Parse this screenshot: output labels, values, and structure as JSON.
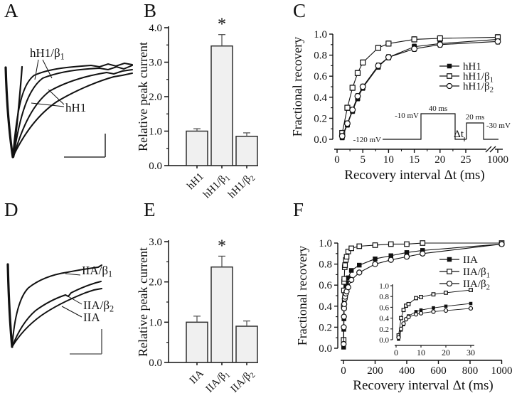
{
  "figure": {
    "background": "#ffffff",
    "panel_labels": [
      "A",
      "B",
      "C",
      "D",
      "E",
      "F"
    ]
  },
  "colors": {
    "ink": "#111111",
    "bar_fill": "#f0f0f0",
    "bar_stroke": "#2e2e2e",
    "error_bar": "#4a4a4a",
    "scale_bar_a": "#333333",
    "scale_bar_d": "#666666"
  },
  "chart_data": [
    {
      "panel": "A",
      "type": "line",
      "subtype": "current-traces",
      "trace_labels": [
        "hH1/β1",
        "hH1"
      ],
      "has_scale_bar": true
    },
    {
      "panel": "B",
      "type": "bar",
      "ylabel": "Relative peak current",
      "categories": [
        "hH1",
        "hH1/β1",
        "hH1/β2"
      ],
      "values": [
        1.0,
        3.47,
        0.85
      ],
      "errors": [
        0.07,
        0.33,
        0.1
      ],
      "significance": [
        "",
        "*",
        ""
      ],
      "ylim": [
        0,
        4
      ],
      "ytick_values": [
        0,
        1,
        2,
        3,
        4
      ],
      "ytick_labels": [
        "0.0",
        "1.0",
        "2.0",
        "3.0",
        "4.0"
      ]
    },
    {
      "panel": "C",
      "type": "scatter",
      "ylabel": "Fractional recovery",
      "xlabel": "Recovery interval Δt (ms)",
      "x": [
        1,
        2,
        3,
        4,
        5,
        8,
        10,
        15,
        20,
        1000
      ],
      "series": [
        {
          "name": "hH1",
          "marker": "filled-square",
          "values": [
            0.02,
            0.14,
            0.27,
            0.39,
            0.49,
            0.69,
            0.78,
            0.88,
            0.91,
            0.95
          ]
        },
        {
          "name": "hH1/β1",
          "marker": "open-square",
          "values": [
            0.06,
            0.3,
            0.49,
            0.63,
            0.73,
            0.87,
            0.91,
            0.95,
            0.96,
            0.97
          ]
        },
        {
          "name": "hH1/β2",
          "marker": "open-circle",
          "values": [
            0.03,
            0.15,
            0.28,
            0.41,
            0.5,
            0.7,
            0.78,
            0.86,
            0.9,
            0.93
          ]
        }
      ],
      "yerr": 0.025,
      "ylim": [
        0,
        1
      ],
      "ytick_values": [
        0,
        0.2,
        0.4,
        0.6,
        0.8,
        1.0
      ],
      "ytick_labels": [
        "0.0",
        "0.2",
        "0.4",
        "0.6",
        "0.8",
        "1.0"
      ],
      "xtick_values": [
        0,
        5,
        10,
        15,
        20,
        25
      ],
      "xtick_labels": [
        "0",
        "5",
        "10",
        "15",
        "20",
        "25"
      ],
      "x_break_tick_label": "1000",
      "legend_position": "right",
      "inset_protocol": {
        "hold_label": "-120 mV",
        "pulse_label": "-10 mV",
        "pulse_duration": "40 ms",
        "test_duration": "20 ms",
        "test_label": "-30 mV",
        "interval_label": "Δt"
      }
    },
    {
      "panel": "D",
      "type": "line",
      "subtype": "current-traces",
      "trace_labels": [
        "IIA/β1",
        "IIA/β2",
        "IIA"
      ],
      "has_scale_bar": true
    },
    {
      "panel": "E",
      "type": "bar",
      "ylabel": "Relative peak current",
      "categories": [
        "IIA",
        "IIA/β1",
        "IIA/β2"
      ],
      "values": [
        1.0,
        2.37,
        0.9
      ],
      "errors": [
        0.15,
        0.27,
        0.13
      ],
      "significance": [
        "",
        "*",
        ""
      ],
      "ylim": [
        0,
        3
      ],
      "ytick_values": [
        0,
        1,
        2,
        3
      ],
      "ytick_labels": [
        "0.0",
        "1.0",
        "2.0",
        "3.0"
      ]
    },
    {
      "panel": "F",
      "type": "scatter",
      "ylabel": "Fractional recovery",
      "xlabel": "Recovery interval Δt (ms)",
      "x": [
        1,
        2,
        3,
        4,
        5,
        8,
        10,
        15,
        20,
        30,
        50,
        100,
        200,
        300,
        400,
        500,
        1000
      ],
      "series": [
        {
          "name": "IIA",
          "marker": "filled-square",
          "values": [
            0.01,
            0.18,
            0.28,
            0.38,
            0.44,
            0.52,
            0.55,
            0.59,
            0.62,
            0.67,
            0.74,
            0.79,
            0.85,
            0.88,
            0.91,
            0.93,
            0.99
          ]
        },
        {
          "name": "IIA/β1",
          "marker": "open-square",
          "values": [
            0.08,
            0.4,
            0.55,
            0.63,
            0.66,
            0.77,
            0.79,
            0.84,
            0.87,
            0.92,
            0.95,
            0.97,
            0.98,
            0.99,
            0.99,
            1.0,
            1.0
          ]
        },
        {
          "name": "IIA/β2",
          "marker": "open-circle",
          "values": [
            0.04,
            0.2,
            0.3,
            0.38,
            0.42,
            0.47,
            0.49,
            0.52,
            0.54,
            0.58,
            0.65,
            0.72,
            0.8,
            0.84,
            0.87,
            0.9,
            0.99
          ]
        }
      ],
      "yerr": 0.015,
      "ylim": [
        0,
        1
      ],
      "ytick_values": [
        0,
        0.2,
        0.4,
        0.6,
        0.8,
        1.0
      ],
      "ytick_labels": [
        "0.0",
        "0.2",
        "0.4",
        "0.6",
        "0.8",
        "1.0"
      ],
      "xtick_values": [
        0,
        200,
        400,
        600,
        800,
        1000
      ],
      "xtick_labels": [
        "0",
        "200",
        "400",
        "600",
        "800",
        "1000"
      ],
      "legend_position": "right",
      "inset": {
        "x": [
          1,
          2,
          3,
          4,
          5,
          8,
          10,
          15,
          20,
          30
        ],
        "xtick_values": [
          0,
          10,
          20,
          30
        ],
        "xtick_labels": [
          "0",
          "10",
          "20",
          "30"
        ],
        "ytick_values": [
          0,
          0.2,
          0.4,
          0.6,
          0.8,
          1.0
        ],
        "ytick_labels": [
          "0.0",
          "0.2",
          "0.4",
          "0.6",
          "0.8",
          "1.0"
        ],
        "series": [
          {
            "name": "IIA",
            "marker": "filled-square",
            "values": [
              0.01,
              0.18,
              0.28,
              0.38,
              0.44,
              0.52,
              0.55,
              0.59,
              0.62,
              0.67
            ]
          },
          {
            "name": "IIA/β1",
            "marker": "open-square",
            "values": [
              0.08,
              0.4,
              0.55,
              0.63,
              0.66,
              0.77,
              0.79,
              0.84,
              0.87,
              0.92
            ]
          },
          {
            "name": "IIA/β2",
            "marker": "open-circle",
            "values": [
              0.04,
              0.2,
              0.3,
              0.38,
              0.42,
              0.47,
              0.49,
              0.52,
              0.54,
              0.58
            ]
          }
        ]
      }
    }
  ]
}
